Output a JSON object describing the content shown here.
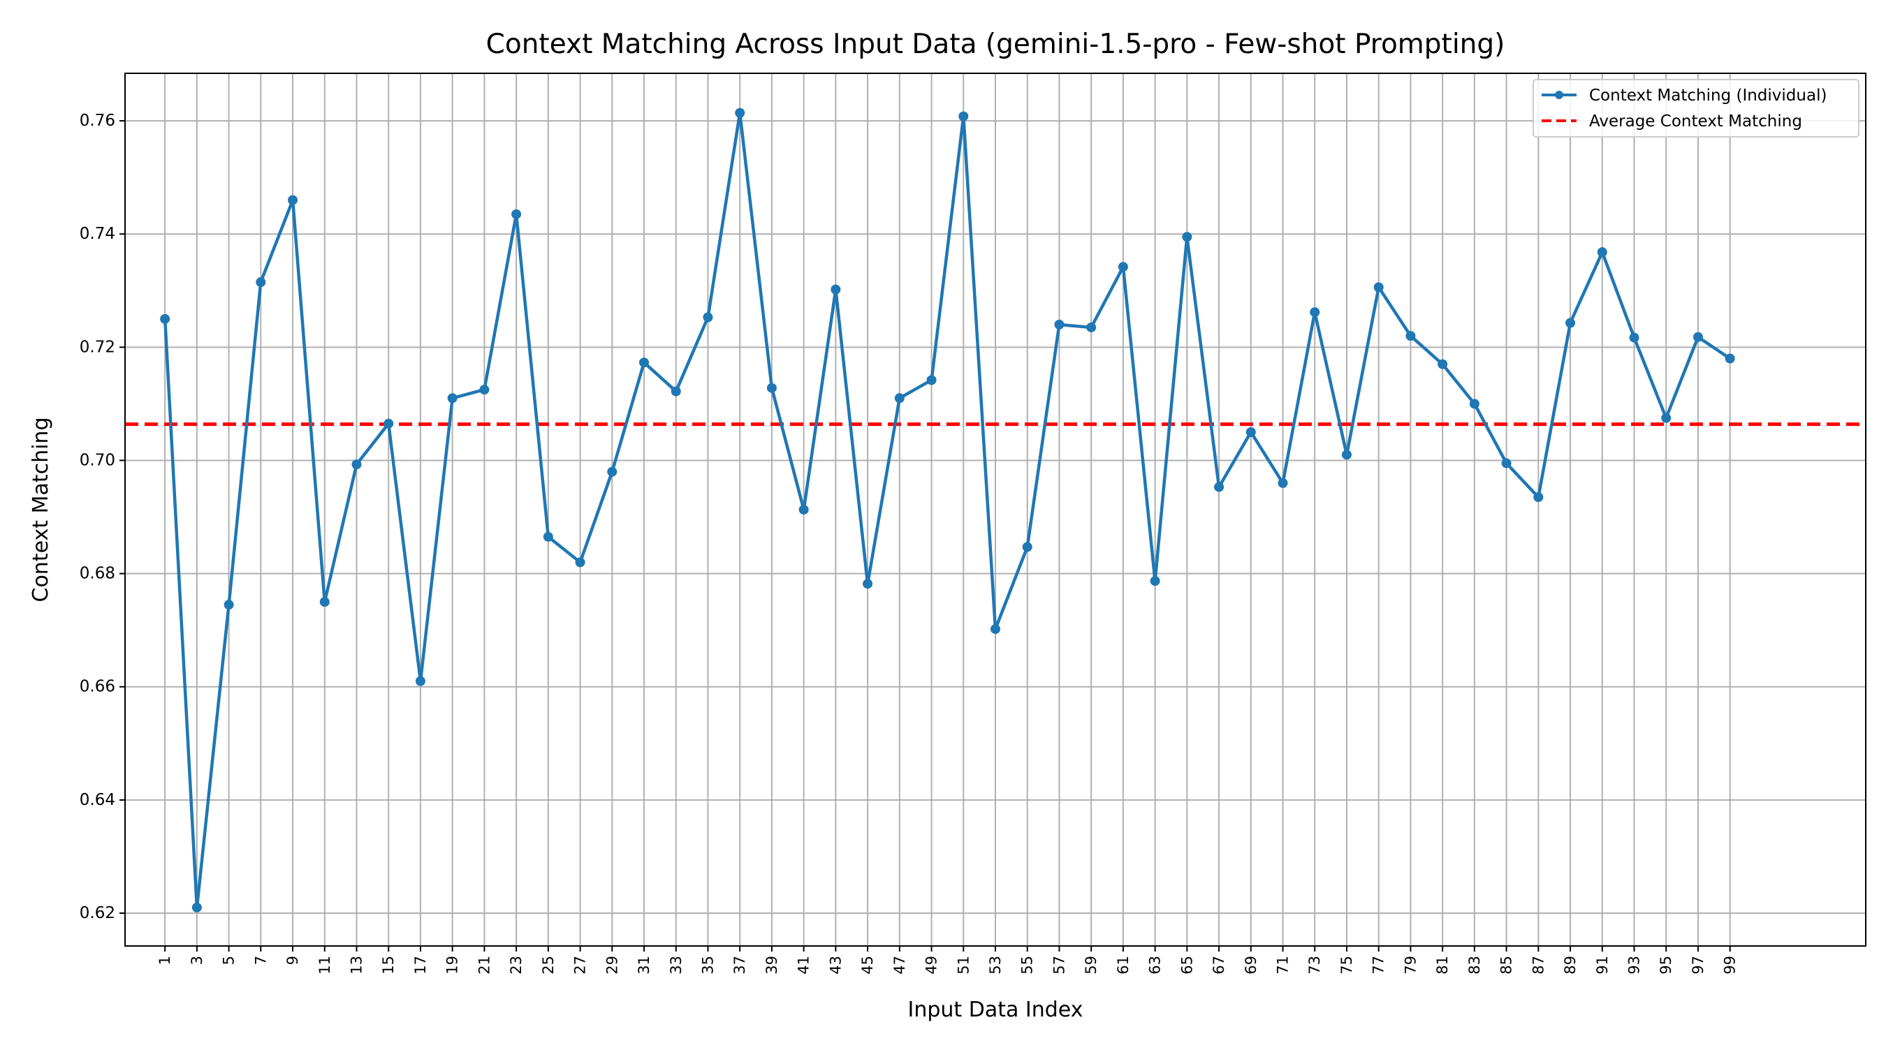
{
  "chart_data": {
    "type": "line",
    "title": "Context Matching Across Input Data (gemini-1.5-pro - Few-shot Prompting)",
    "xlabel": "Input Data Index",
    "ylabel": "Context Matching",
    "xlim": [
      -1.5,
      107.5
    ],
    "ylim": [
      0.6142,
      0.7684
    ],
    "xticks": [
      1,
      3,
      5,
      7,
      9,
      11,
      13,
      15,
      17,
      19,
      21,
      23,
      25,
      27,
      29,
      31,
      33,
      35,
      37,
      39,
      41,
      43,
      45,
      47,
      49,
      51,
      53,
      55,
      57,
      59,
      61,
      63,
      65,
      67,
      69,
      71,
      73,
      75,
      77,
      79,
      81,
      83,
      85,
      87,
      89,
      91,
      93,
      95,
      97,
      99
    ],
    "yticks": [
      0.62,
      0.64,
      0.66,
      0.68,
      0.7,
      0.72,
      0.74,
      0.76
    ],
    "ytick_labels": [
      "0.62",
      "0.64",
      "0.66",
      "0.68",
      "0.70",
      "0.72",
      "0.74",
      "0.76"
    ],
    "grid": true,
    "legend_position": "top-right",
    "series": [
      {
        "name": "Context Matching (Individual)",
        "color": "#1f77b4",
        "style": "solid-with-markers",
        "x": [
          1,
          3,
          5,
          7,
          9,
          11,
          13,
          15,
          17,
          19,
          21,
          23,
          25,
          27,
          29,
          31,
          33,
          35,
          37,
          39,
          41,
          43,
          45,
          47,
          49,
          51,
          53,
          55,
          57,
          59,
          61,
          63,
          65,
          67,
          69,
          71,
          73,
          75,
          77,
          79,
          81,
          83,
          85,
          87,
          89,
          91,
          93,
          95,
          97,
          99
        ],
        "values": [
          0.725,
          0.621,
          0.6745,
          0.7315,
          0.746,
          0.675,
          0.6993,
          0.7065,
          0.661,
          0.711,
          0.7125,
          0.7435,
          0.6865,
          0.682,
          0.698,
          0.7173,
          0.7122,
          0.7253,
          0.7614,
          0.7128,
          0.6913,
          0.7302,
          0.6782,
          0.711,
          0.7142,
          0.7608,
          0.6702,
          0.6847,
          0.724,
          0.7235,
          0.7342,
          0.6787,
          0.7395,
          0.6953,
          0.705,
          0.696,
          0.7262,
          0.701,
          0.7306,
          0.722,
          0.717,
          0.71,
          0.6995,
          0.6935,
          0.7243,
          0.7368,
          0.7217,
          0.7075,
          0.7218,
          0.718
        ]
      },
      {
        "name": "Average Context Matching",
        "color": "#ff0000",
        "style": "dashed",
        "value": 0.7064
      }
    ]
  }
}
